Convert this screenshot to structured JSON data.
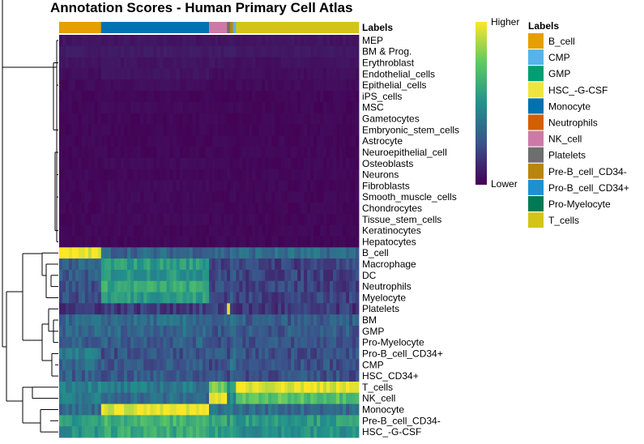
{
  "title": "Annotation Scores - Human Primary Cell Atlas",
  "chart_data": {
    "type": "heatmap",
    "title": "Annotation Scores - Human Primary Cell Atlas",
    "annotation_title": "Labels",
    "colorbar": {
      "high_label": "Higher",
      "low_label": "Lower",
      "colors": [
        "#440154",
        "#3b528b",
        "#21918c",
        "#5ec962",
        "#fde725"
      ]
    },
    "column_groups": [
      {
        "label": "B_cell",
        "color": "#E69F00",
        "fraction": 0.14
      },
      {
        "label": "Monocyte",
        "color": "#0072B2",
        "fraction": 0.36
      },
      {
        "label": "NK_cell",
        "color": "#CC79A7",
        "fraction": 0.06
      },
      {
        "label": "Platelets",
        "color": "#6E6E6E",
        "fraction": 0.01
      },
      {
        "label": "Pre-B_cell_CD34-",
        "color": "#B8860B",
        "fraction": 0.01
      },
      {
        "label": "Pro-B_cell_CD34+",
        "color": "#56B4E9",
        "fraction": 0.01
      },
      {
        "label": "T_cells",
        "color": "#D4C419",
        "fraction": 0.41
      }
    ],
    "legend": [
      {
        "label": "B_cell",
        "color": "#E69F00"
      },
      {
        "label": "CMP",
        "color": "#56B4E9"
      },
      {
        "label": "GMP",
        "color": "#009E73"
      },
      {
        "label": "HSC_-G-CSF",
        "color": "#F0E442"
      },
      {
        "label": "Monocyte",
        "color": "#0072B2"
      },
      {
        "label": "Neutrophils",
        "color": "#D55E00"
      },
      {
        "label": "NK_cell",
        "color": "#CC79A7"
      },
      {
        "label": "Platelets",
        "color": "#6E6E6E"
      },
      {
        "label": "Pre-B_cell_CD34-",
        "color": "#B8860B"
      },
      {
        "label": "Pro-B_cell_CD34+",
        "color": "#1E90D0"
      },
      {
        "label": "Pro-Myelocyte",
        "color": "#007A55"
      },
      {
        "label": "T_cells",
        "color": "#D4C419"
      }
    ],
    "rows": [
      {
        "label": "MEP",
        "values": [
          0.06,
          0.06,
          0.06,
          0.06,
          0.06,
          0.06,
          0.06
        ]
      },
      {
        "label": "BM & Prog.",
        "values": [
          0.08,
          0.08,
          0.08,
          0.08,
          0.08,
          0.08,
          0.07
        ]
      },
      {
        "label": "Erythroblast",
        "values": [
          0.06,
          0.06,
          0.06,
          0.06,
          0.06,
          0.06,
          0.05
        ]
      },
      {
        "label": "Endothelial_cells",
        "values": [
          0.04,
          0.06,
          0.04,
          0.04,
          0.04,
          0.04,
          0.04
        ]
      },
      {
        "label": "Epithelial_cells",
        "values": [
          0.03,
          0.04,
          0.03,
          0.03,
          0.03,
          0.03,
          0.03
        ]
      },
      {
        "label": "iPS_cells",
        "values": [
          0.02,
          0.02,
          0.02,
          0.02,
          0.02,
          0.02,
          0.02
        ]
      },
      {
        "label": "MSC",
        "values": [
          0.02,
          0.03,
          0.02,
          0.02,
          0.02,
          0.02,
          0.02
        ]
      },
      {
        "label": "Gametocytes",
        "values": [
          0.02,
          0.02,
          0.02,
          0.02,
          0.02,
          0.02,
          0.02
        ]
      },
      {
        "label": "Embryonic_stem_cells",
        "values": [
          0.02,
          0.02,
          0.02,
          0.02,
          0.02,
          0.02,
          0.02
        ]
      },
      {
        "label": "Astrocyte",
        "values": [
          0.02,
          0.02,
          0.02,
          0.02,
          0.02,
          0.02,
          0.02
        ]
      },
      {
        "label": "Neuroepithelial_cell",
        "values": [
          0.02,
          0.02,
          0.02,
          0.02,
          0.02,
          0.02,
          0.02
        ]
      },
      {
        "label": "Osteoblasts",
        "values": [
          0.02,
          0.03,
          0.02,
          0.02,
          0.02,
          0.02,
          0.02
        ]
      },
      {
        "label": "Neurons",
        "values": [
          0.02,
          0.02,
          0.02,
          0.02,
          0.02,
          0.02,
          0.02
        ]
      },
      {
        "label": "Fibroblasts",
        "values": [
          0.02,
          0.03,
          0.02,
          0.02,
          0.02,
          0.02,
          0.02
        ]
      },
      {
        "label": "Smooth_muscle_cells",
        "values": [
          0.02,
          0.03,
          0.02,
          0.02,
          0.02,
          0.02,
          0.02
        ]
      },
      {
        "label": "Chondrocytes",
        "values": [
          0.02,
          0.03,
          0.02,
          0.02,
          0.02,
          0.02,
          0.02
        ]
      },
      {
        "label": "Tissue_stem_cells",
        "values": [
          0.02,
          0.03,
          0.02,
          0.02,
          0.02,
          0.02,
          0.02
        ]
      },
      {
        "label": "Keratinocytes",
        "values": [
          0.02,
          0.02,
          0.02,
          0.02,
          0.02,
          0.02,
          0.02
        ]
      },
      {
        "label": "Hepatocytes",
        "values": [
          0.02,
          0.02,
          0.02,
          0.02,
          0.02,
          0.02,
          0.02
        ]
      },
      {
        "label": "B_cell",
        "values": [
          0.97,
          0.33,
          0.33,
          0.28,
          0.4,
          0.35,
          0.35
        ]
      },
      {
        "label": "Macrophage",
        "values": [
          0.3,
          0.55,
          0.22,
          0.2,
          0.3,
          0.3,
          0.2
        ]
      },
      {
        "label": "DC",
        "values": [
          0.28,
          0.52,
          0.22,
          0.2,
          0.28,
          0.28,
          0.2
        ]
      },
      {
        "label": "Neutrophils",
        "values": [
          0.26,
          0.6,
          0.22,
          0.2,
          0.3,
          0.28,
          0.2
        ]
      },
      {
        "label": "Myelocyte",
        "values": [
          0.25,
          0.55,
          0.22,
          0.2,
          0.3,
          0.28,
          0.2
        ]
      },
      {
        "label": "Platelets",
        "values": [
          0.18,
          0.18,
          0.18,
          0.95,
          0.18,
          0.18,
          0.16
        ]
      },
      {
        "label": "BM",
        "values": [
          0.33,
          0.35,
          0.3,
          0.3,
          0.35,
          0.35,
          0.28
        ]
      },
      {
        "label": "GMP",
        "values": [
          0.33,
          0.33,
          0.28,
          0.28,
          0.35,
          0.35,
          0.28
        ]
      },
      {
        "label": "Pro-Myelocyte",
        "values": [
          0.3,
          0.3,
          0.26,
          0.26,
          0.33,
          0.33,
          0.26
        ]
      },
      {
        "label": "Pro-B_cell_CD34+",
        "values": [
          0.4,
          0.26,
          0.25,
          0.25,
          0.4,
          0.4,
          0.25
        ]
      },
      {
        "label": "CMP",
        "values": [
          0.33,
          0.28,
          0.25,
          0.25,
          0.35,
          0.35,
          0.25
        ]
      },
      {
        "label": "HSC_CD34+",
        "values": [
          0.3,
          0.28,
          0.25,
          0.25,
          0.32,
          0.32,
          0.25
        ]
      },
      {
        "label": "T_cells",
        "values": [
          0.45,
          0.4,
          0.8,
          0.4,
          0.5,
          0.5,
          0.97
        ]
      },
      {
        "label": "NK_cell",
        "values": [
          0.4,
          0.35,
          0.97,
          0.4,
          0.45,
          0.45,
          0.72
        ]
      },
      {
        "label": "Monocyte",
        "values": [
          0.35,
          0.97,
          0.4,
          0.35,
          0.4,
          0.4,
          0.35
        ]
      },
      {
        "label": "Pre-B_cell_CD34-",
        "values": [
          0.55,
          0.65,
          0.58,
          0.5,
          0.6,
          0.6,
          0.55
        ]
      },
      {
        "label": "HSC_-G-CSF",
        "values": [
          0.5,
          0.6,
          0.55,
          0.5,
          0.55,
          0.55,
          0.5
        ]
      }
    ]
  }
}
